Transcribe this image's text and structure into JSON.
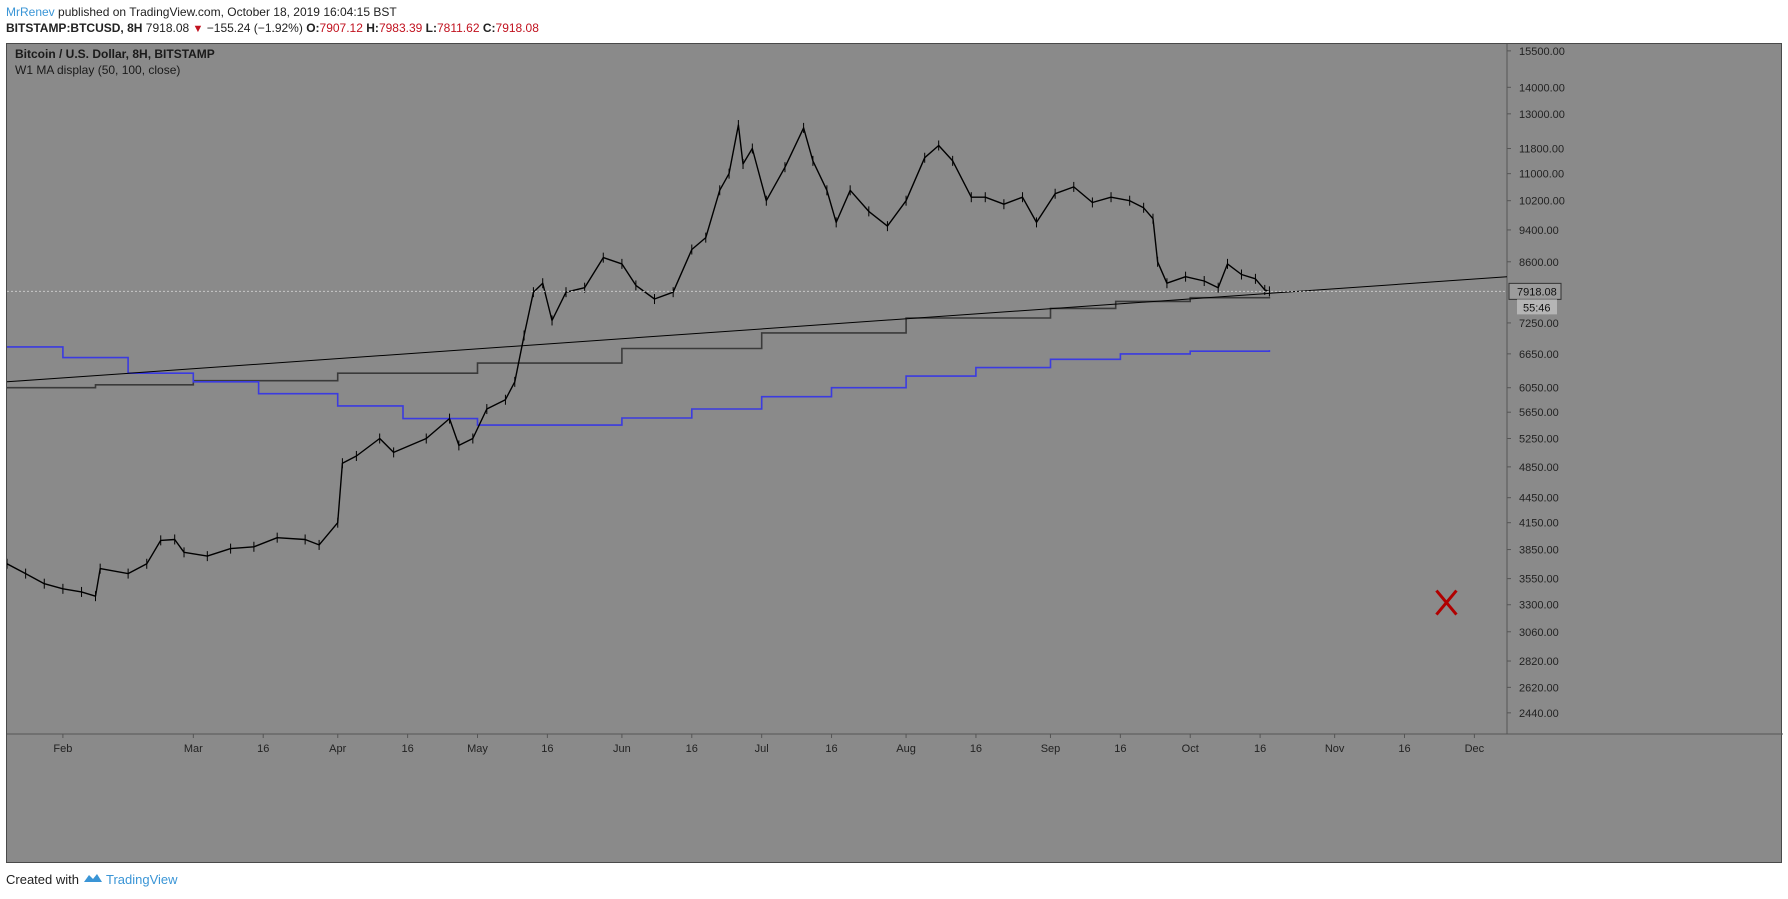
{
  "header": {
    "author": "MrRenev",
    "published_text": "published on TradingView.com, October 18, 2019 16:04:15 BST"
  },
  "quote": {
    "symbol_text": "BITSTAMP:BTCUSD, 8H",
    "last": "7918.08",
    "change": "−155.24 (−1.92%)",
    "o_label": "O:",
    "o_value": "7907.12",
    "h_label": "H:",
    "h_value": "7983.39",
    "l_label": "L:",
    "l_value": "7811.62",
    "c_label": "C:",
    "c_value": "7918.08"
  },
  "footer": {
    "created_with": "Created with",
    "brand": "TradingView"
  },
  "colors": {
    "background": "#8a8a8a",
    "price": "#000000",
    "ma50": "#3a3a3a",
    "ma100": "#3b3be0",
    "trendline": "#000000",
    "marker": "#b00000"
  },
  "chart_data": {
    "type": "line",
    "title": "Bitcoin / U.S. Dollar, 8H, BITSTAMP",
    "subtitle": "W1 MA display (50, 100, close)",
    "y_scale": "log",
    "ylim": [
      2300,
      15800
    ],
    "xlim": [
      "2019-01-20",
      "2019-12-08"
    ],
    "y_ticks": [
      "15500.00",
      "14000.00",
      "13000.00",
      "11800.00",
      "11000.00",
      "10200.00",
      "9400.00",
      "8600.00",
      "7918.08",
      "7250.00",
      "6650.00",
      "6050.00",
      "5650.00",
      "5250.00",
      "4850.00",
      "4450.00",
      "4150.00",
      "3850.00",
      "3550.00",
      "3300.00",
      "3060.00",
      "2820.00",
      "2620.00",
      "2440.00"
    ],
    "x_ticks": [
      {
        "date": "2019-02-01",
        "label": "Feb"
      },
      {
        "date": "2019-03-01",
        "label": "Mar"
      },
      {
        "date": "2019-03-16",
        "label": "16"
      },
      {
        "date": "2019-04-01",
        "label": "Apr"
      },
      {
        "date": "2019-04-16",
        "label": "16"
      },
      {
        "date": "2019-05-01",
        "label": "May"
      },
      {
        "date": "2019-05-16",
        "label": "16"
      },
      {
        "date": "2019-06-01",
        "label": "Jun"
      },
      {
        "date": "2019-06-16",
        "label": "16"
      },
      {
        "date": "2019-07-01",
        "label": "Jul"
      },
      {
        "date": "2019-07-16",
        "label": "16"
      },
      {
        "date": "2019-08-01",
        "label": "Aug"
      },
      {
        "date": "2019-08-16",
        "label": "16"
      },
      {
        "date": "2019-09-01",
        "label": "Sep"
      },
      {
        "date": "2019-09-16",
        "label": "16"
      },
      {
        "date": "2019-10-01",
        "label": "Oct"
      },
      {
        "date": "2019-10-16",
        "label": "16"
      },
      {
        "date": "2019-11-01",
        "label": "Nov"
      },
      {
        "date": "2019-11-16",
        "label": "16"
      },
      {
        "date": "2019-12-01",
        "label": "Dec"
      }
    ],
    "last_price_label": "7918.08",
    "countdown_label": "55:46",
    "series": [
      {
        "style": "price",
        "points": [
          [
            "2019-01-20",
            3700
          ],
          [
            "2019-01-24",
            3600
          ],
          [
            "2019-01-28",
            3500
          ],
          [
            "2019-02-01",
            3450
          ],
          [
            "2019-02-05",
            3420
          ],
          [
            "2019-02-08",
            3380
          ],
          [
            "2019-02-09",
            3650
          ],
          [
            "2019-02-15",
            3600
          ],
          [
            "2019-02-19",
            3700
          ],
          [
            "2019-02-22",
            3950
          ],
          [
            "2019-02-25",
            3960
          ],
          [
            "2019-02-27",
            3820
          ],
          [
            "2019-03-04",
            3780
          ],
          [
            "2019-03-09",
            3860
          ],
          [
            "2019-03-14",
            3880
          ],
          [
            "2019-03-19",
            3980
          ],
          [
            "2019-03-25",
            3960
          ],
          [
            "2019-03-28",
            3900
          ],
          [
            "2019-04-01",
            4150
          ],
          [
            "2019-04-02",
            4900
          ],
          [
            "2019-04-05",
            5000
          ],
          [
            "2019-04-10",
            5250
          ],
          [
            "2019-04-13",
            5050
          ],
          [
            "2019-04-20",
            5250
          ],
          [
            "2019-04-25",
            5550
          ],
          [
            "2019-04-27",
            5150
          ],
          [
            "2019-04-30",
            5250
          ],
          [
            "2019-05-03",
            5700
          ],
          [
            "2019-05-07",
            5850
          ],
          [
            "2019-05-09",
            6150
          ],
          [
            "2019-05-11",
            7000
          ],
          [
            "2019-05-13",
            7900
          ],
          [
            "2019-05-15",
            8100
          ],
          [
            "2019-05-17",
            7300
          ],
          [
            "2019-05-20",
            7900
          ],
          [
            "2019-05-24",
            8000
          ],
          [
            "2019-05-28",
            8700
          ],
          [
            "2019-06-01",
            8550
          ],
          [
            "2019-06-04",
            8050
          ],
          [
            "2019-06-08",
            7750
          ],
          [
            "2019-06-12",
            7900
          ],
          [
            "2019-06-16",
            8900
          ],
          [
            "2019-06-19",
            9200
          ],
          [
            "2019-06-22",
            10500
          ],
          [
            "2019-06-24",
            11000
          ],
          [
            "2019-06-26",
            12600
          ],
          [
            "2019-06-27",
            11300
          ],
          [
            "2019-06-29",
            11800
          ],
          [
            "2019-07-02",
            10200
          ],
          [
            "2019-07-06",
            11200
          ],
          [
            "2019-07-10",
            12500
          ],
          [
            "2019-07-12",
            11400
          ],
          [
            "2019-07-15",
            10500
          ],
          [
            "2019-07-17",
            9600
          ],
          [
            "2019-07-20",
            10500
          ],
          [
            "2019-07-24",
            9900
          ],
          [
            "2019-07-28",
            9500
          ],
          [
            "2019-08-01",
            10200
          ],
          [
            "2019-08-05",
            11500
          ],
          [
            "2019-08-08",
            11900
          ],
          [
            "2019-08-11",
            11400
          ],
          [
            "2019-08-15",
            10300
          ],
          [
            "2019-08-18",
            10300
          ],
          [
            "2019-08-22",
            10100
          ],
          [
            "2019-08-26",
            10300
          ],
          [
            "2019-08-29",
            9600
          ],
          [
            "2019-09-02",
            10400
          ],
          [
            "2019-09-06",
            10600
          ],
          [
            "2019-09-10",
            10150
          ],
          [
            "2019-09-14",
            10300
          ],
          [
            "2019-09-18",
            10200
          ],
          [
            "2019-09-21",
            10000
          ],
          [
            "2019-09-23",
            9700
          ],
          [
            "2019-09-24",
            8600
          ],
          [
            "2019-09-26",
            8100
          ],
          [
            "2019-09-30",
            8250
          ],
          [
            "2019-10-04",
            8150
          ],
          [
            "2019-10-07",
            8000
          ],
          [
            "2019-10-09",
            8550
          ],
          [
            "2019-10-12",
            8300
          ],
          [
            "2019-10-15",
            8200
          ],
          [
            "2019-10-17",
            7950
          ],
          [
            "2019-10-18",
            7918
          ]
        ]
      },
      {
        "style": "ma50",
        "points": [
          [
            "2019-01-20",
            6050
          ],
          [
            "2019-02-08",
            6100
          ],
          [
            "2019-03-01",
            6170
          ],
          [
            "2019-04-01",
            6300
          ],
          [
            "2019-05-01",
            6480
          ],
          [
            "2019-06-01",
            6750
          ],
          [
            "2019-07-01",
            7050
          ],
          [
            "2019-08-01",
            7350
          ],
          [
            "2019-09-01",
            7550
          ],
          [
            "2019-09-15",
            7700
          ],
          [
            "2019-10-01",
            7780
          ],
          [
            "2019-10-18",
            7800
          ]
        ]
      },
      {
        "style": "ma100",
        "points": [
          [
            "2019-01-20",
            6780
          ],
          [
            "2019-02-01",
            6580
          ],
          [
            "2019-02-15",
            6300
          ],
          [
            "2019-03-01",
            6150
          ],
          [
            "2019-03-15",
            5950
          ],
          [
            "2019-04-01",
            5750
          ],
          [
            "2019-04-15",
            5550
          ],
          [
            "2019-05-01",
            5450
          ],
          [
            "2019-05-16",
            5450
          ],
          [
            "2019-06-01",
            5560
          ],
          [
            "2019-06-16",
            5700
          ],
          [
            "2019-07-01",
            5900
          ],
          [
            "2019-07-16",
            6050
          ],
          [
            "2019-08-01",
            6250
          ],
          [
            "2019-08-16",
            6400
          ],
          [
            "2019-09-01",
            6550
          ],
          [
            "2019-09-16",
            6650
          ],
          [
            "2019-10-01",
            6700
          ],
          [
            "2019-10-18",
            6720
          ]
        ]
      },
      {
        "style": "trendline",
        "points": [
          [
            "2019-01-20",
            6150
          ],
          [
            "2019-12-08",
            8250
          ]
        ]
      }
    ],
    "annotations": [
      {
        "type": "cross-marker",
        "date": "2019-11-25",
        "value": 3320
      }
    ]
  }
}
